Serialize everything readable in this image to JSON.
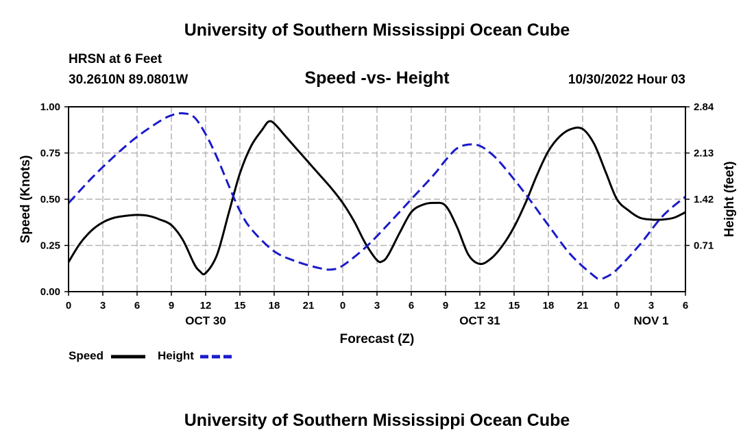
{
  "header": {
    "title": "University of Southern Mississippi Ocean Cube",
    "station": "HRSN at 6 Feet",
    "coords": "30.2610N  89.0801W",
    "subtitle": "Speed -vs- Height",
    "datetime": "10/30/2022 Hour 03"
  },
  "footer": {
    "title": "University of Southern Mississippi Ocean Cube"
  },
  "colors": {
    "speed": "#000000",
    "height": "#1a1acc",
    "grid": "#b4b4b4"
  },
  "chart_data": {
    "type": "line",
    "title": "Speed -vs- Height",
    "xlabel": "Forecast (Z)",
    "ylabel": "Speed (Knots)",
    "ylabel_right": "Height (feet)",
    "xlim": [
      0,
      54
    ],
    "x_ticks": [
      0,
      3,
      6,
      9,
      12,
      15,
      18,
      21,
      24,
      27,
      30,
      33,
      36,
      39,
      42,
      45,
      48,
      51,
      54
    ],
    "x_tick_labels": [
      "0",
      "3",
      "6",
      "9",
      "12",
      "15",
      "18",
      "21",
      "0",
      "3",
      "6",
      "9",
      "12",
      "15",
      "18",
      "21",
      "0",
      "3",
      "6"
    ],
    "date_labels": [
      {
        "x": 12,
        "label": "OCT 30"
      },
      {
        "x": 36,
        "label": "OCT 31"
      },
      {
        "x": 51,
        "label": "NOV 1"
      }
    ],
    "ylim_left": [
      0,
      1
    ],
    "y_ticks_left": [
      0,
      0.25,
      0.5,
      0.75,
      1.0
    ],
    "y_tick_labels_left": [
      "0.00",
      "0.25",
      "0.50",
      "0.75",
      "1.00"
    ],
    "ylim_right": [
      0,
      2.84
    ],
    "y_ticks_right": [
      0.71,
      1.42,
      2.13,
      2.84
    ],
    "y_tick_labels_right": [
      "0.71",
      "1.42",
      "2.13",
      "2.84"
    ],
    "grid": true,
    "legend": {
      "position": "bottom-left",
      "entries": [
        "Speed",
        "Height"
      ]
    },
    "series": [
      {
        "name": "Speed",
        "axis": "left",
        "style": "solid",
        "x": [
          0,
          1,
          2,
          3,
          4,
          5,
          6,
          7,
          8,
          9,
          10,
          11,
          11.5,
          12,
          13,
          14,
          15,
          16,
          17,
          17.5,
          18,
          19,
          20,
          21,
          22,
          23,
          24,
          25,
          26,
          27,
          27.5,
          28,
          29,
          30,
          31,
          32,
          33,
          34,
          35,
          36,
          37,
          38,
          39,
          40,
          41,
          42,
          43,
          44,
          45,
          46,
          47,
          48,
          49,
          50,
          51,
          52,
          53,
          54
        ],
        "y": [
          0.16,
          0.26,
          0.33,
          0.375,
          0.4,
          0.41,
          0.415,
          0.41,
          0.39,
          0.36,
          0.28,
          0.15,
          0.11,
          0.1,
          0.2,
          0.42,
          0.64,
          0.79,
          0.88,
          0.92,
          0.91,
          0.84,
          0.77,
          0.7,
          0.63,
          0.56,
          0.48,
          0.38,
          0.26,
          0.17,
          0.165,
          0.2,
          0.32,
          0.43,
          0.47,
          0.48,
          0.465,
          0.35,
          0.2,
          0.15,
          0.18,
          0.25,
          0.35,
          0.48,
          0.63,
          0.76,
          0.84,
          0.88,
          0.88,
          0.8,
          0.65,
          0.5,
          0.44,
          0.4,
          0.39,
          0.39,
          0.4,
          0.43
        ]
      },
      {
        "name": "Height",
        "axis": "right",
        "style": "dashed",
        "x": [
          0,
          2,
          4,
          6,
          8,
          9,
          10,
          11,
          12,
          13,
          14,
          15,
          16,
          18,
          20,
          22,
          23,
          24,
          26,
          28,
          30,
          32,
          33,
          34,
          35,
          36,
          37,
          38,
          40,
          42,
          44,
          46,
          46.5,
          47,
          48,
          50,
          52,
          54
        ],
        "y": [
          1.36,
          1.74,
          2.08,
          2.38,
          2.62,
          2.71,
          2.74,
          2.68,
          2.42,
          2.06,
          1.64,
          1.24,
          0.96,
          0.62,
          0.46,
          0.36,
          0.34,
          0.4,
          0.68,
          1.04,
          1.42,
          1.8,
          2.02,
          2.2,
          2.26,
          2.24,
          2.12,
          1.94,
          1.5,
          1.02,
          0.56,
          0.24,
          0.2,
          0.22,
          0.34,
          0.72,
          1.16,
          1.46
        ]
      }
    ]
  }
}
